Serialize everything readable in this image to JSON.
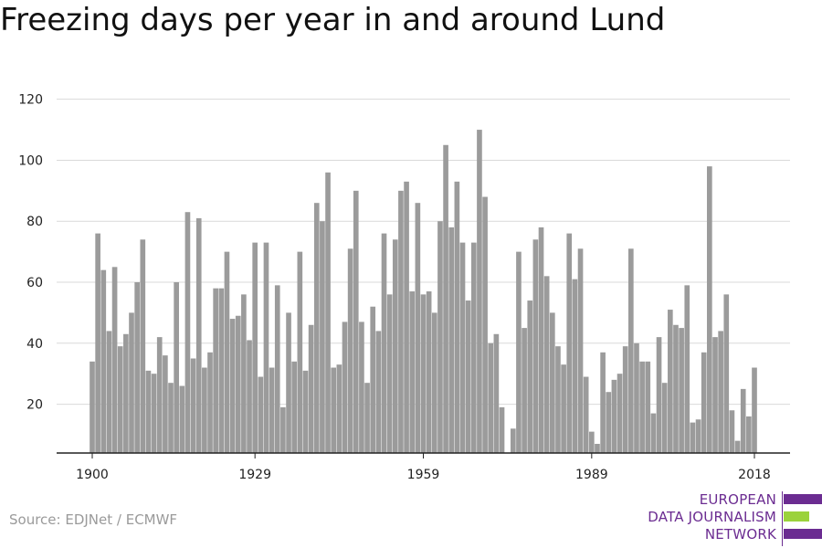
{
  "title": "Freezing days per year in and around Lund",
  "source": "Source: EDJNet / ECMWF",
  "logo": {
    "lines": [
      "EUROPEAN",
      "DATA JOURNALISM",
      "NETWORK"
    ],
    "colors": {
      "purple": "#6b2c91",
      "green": "#9bd23c"
    }
  },
  "colors": {
    "bar": "#9b9b9b",
    "grid": "#d9d9d9",
    "axis": "#222222",
    "text": "#222222"
  },
  "chart_data": {
    "type": "bar",
    "title": "Freezing days per year in and around Lund",
    "xlabel": "",
    "ylabel": "",
    "ylim": [
      4,
      122
    ],
    "y_ticks": [
      20,
      40,
      60,
      80,
      100,
      120
    ],
    "x_ticks": [
      1900,
      1929,
      1959,
      1989,
      2018
    ],
    "grid": true,
    "categories": [
      1900,
      1901,
      1902,
      1903,
      1904,
      1905,
      1906,
      1907,
      1908,
      1909,
      1910,
      1911,
      1912,
      1913,
      1914,
      1915,
      1916,
      1917,
      1918,
      1919,
      1920,
      1921,
      1922,
      1923,
      1924,
      1925,
      1926,
      1927,
      1928,
      1929,
      1930,
      1931,
      1932,
      1933,
      1934,
      1935,
      1936,
      1937,
      1938,
      1939,
      1940,
      1941,
      1942,
      1943,
      1944,
      1945,
      1946,
      1947,
      1948,
      1949,
      1950,
      1951,
      1952,
      1953,
      1954,
      1955,
      1956,
      1957,
      1958,
      1959,
      1960,
      1961,
      1962,
      1963,
      1964,
      1965,
      1966,
      1967,
      1968,
      1969,
      1970,
      1971,
      1972,
      1973,
      1974,
      1975,
      1976,
      1977,
      1978,
      1979,
      1980,
      1981,
      1982,
      1983,
      1984,
      1985,
      1986,
      1987,
      1988,
      1989,
      1990,
      1991,
      1992,
      1993,
      1994,
      1995,
      1996,
      1997,
      1998,
      1999,
      2000,
      2001,
      2002,
      2003,
      2004,
      2005,
      2006,
      2007,
      2008,
      2009,
      2010,
      2011,
      2012,
      2013,
      2014,
      2015,
      2016,
      2017,
      2018
    ],
    "values": [
      34,
      76,
      64,
      44,
      65,
      39,
      43,
      50,
      60,
      74,
      31,
      30,
      42,
      36,
      27,
      60,
      26,
      83,
      35,
      81,
      32,
      37,
      58,
      58,
      70,
      48,
      49,
      56,
      41,
      73,
      29,
      73,
      32,
      59,
      19,
      50,
      34,
      70,
      31,
      46,
      86,
      80,
      96,
      32,
      33,
      47,
      71,
      90,
      47,
      27,
      52,
      44,
      76,
      56,
      74,
      90,
      93,
      57,
      86,
      56,
      57,
      50,
      80,
      105,
      78,
      93,
      73,
      54,
      73,
      110,
      88,
      40,
      43,
      19,
      4,
      12,
      70,
      45,
      54,
      74,
      78,
      62,
      50,
      39,
      33,
      76,
      61,
      71,
      29,
      11,
      7,
      37,
      24,
      28,
      30,
      39,
      71,
      40,
      34,
      34,
      17,
      42,
      27,
      51,
      46,
      45,
      59,
      14,
      15,
      37,
      98,
      42,
      44,
      56,
      18,
      8,
      25,
      16,
      32
    ]
  }
}
